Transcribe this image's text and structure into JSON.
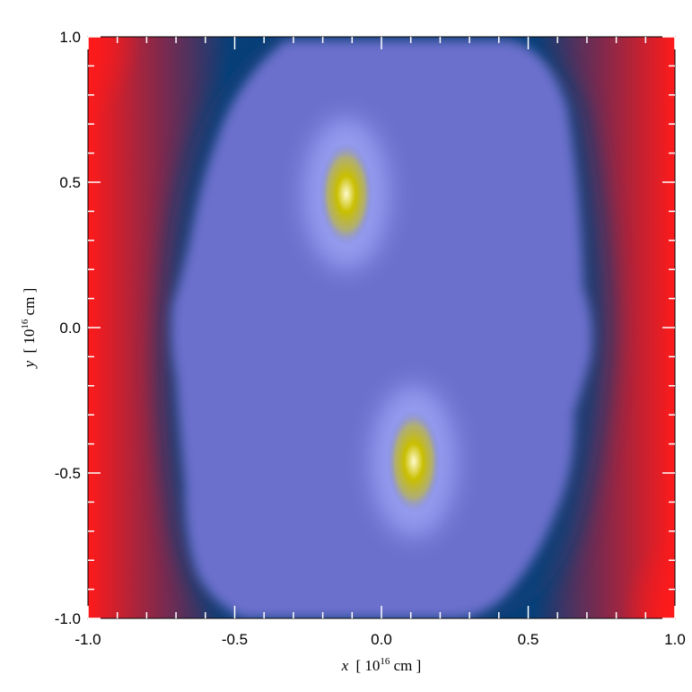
{
  "chart_data": {
    "type": "heatmap",
    "title": "",
    "xlabel": {
      "var": "x",
      "open": "[ 10",
      "exp": "16",
      "unit": " cm ]"
    },
    "ylabel": {
      "var": "y",
      "open": "[ 10",
      "exp": "16",
      "unit": " cm ]"
    },
    "xlim": [
      -1.0,
      1.0
    ],
    "ylim": [
      -1.0,
      1.0
    ],
    "x_ticks": [
      {
        "value": -1.0,
        "label": "-1.0"
      },
      {
        "value": -0.5,
        "label": "-0.5"
      },
      {
        "value": 0.0,
        "label": "0.0"
      },
      {
        "value": 0.5,
        "label": "0.5"
      },
      {
        "value": 1.0,
        "label": "1.0"
      }
    ],
    "y_ticks": [
      {
        "value": -1.0,
        "label": "-1.0"
      },
      {
        "value": -0.5,
        "label": "-0.5"
      },
      {
        "value": 0.0,
        "label": "0.0"
      },
      {
        "value": 0.5,
        "label": "0.5"
      },
      {
        "value": 1.0,
        "label": "1.0"
      }
    ],
    "minor_tick_step": 0.1,
    "colormap": [
      "#ff1a1a",
      "#7a2a4f",
      "#0a3f78",
      "#8a8ef2",
      "#fffacc",
      "#d6c800"
    ],
    "background_gradient": {
      "edge": "#ff1a1a",
      "mid": "#7a2a4f",
      "dark": "#0a3f78"
    },
    "nebula_color": "#6b6fcc",
    "hot_spots": [
      {
        "x": -0.12,
        "y": 0.46,
        "peak_color": "#fffacc",
        "core_color": "#c9bf00"
      },
      {
        "x": 0.11,
        "y": -0.46,
        "peak_color": "#fffacc",
        "core_color": "#c9bf00"
      }
    ]
  }
}
